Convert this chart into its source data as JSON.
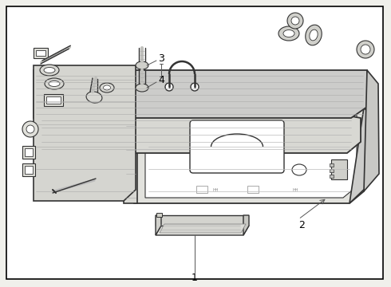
{
  "background_color": "#f0f0eb",
  "border_color": "#000000",
  "line_color": "#333333",
  "label_color": "#000000",
  "figsize": [
    4.9,
    3.6
  ],
  "dpi": 100
}
